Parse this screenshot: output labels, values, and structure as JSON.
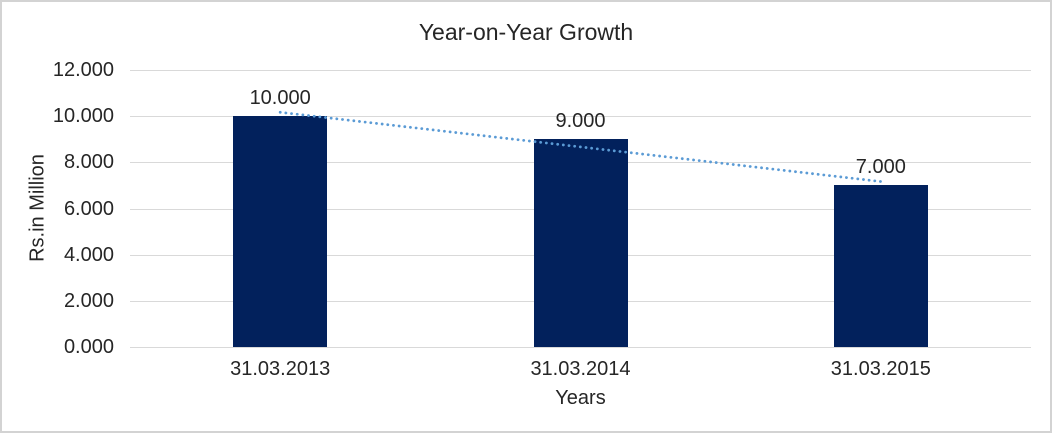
{
  "chart_data": {
    "type": "bar",
    "title": "Year-on-Year Growth",
    "xlabel": "Years",
    "ylabel": "Rs.in Million",
    "categories": [
      "31.03.2013",
      "31.03.2014",
      "31.03.2015"
    ],
    "values": [
      10000,
      9000,
      7000
    ],
    "value_labels": [
      "10.000",
      "9.000",
      "7.000"
    ],
    "ytick_labels": [
      "12.000",
      "10.000",
      "8.000",
      "6.000",
      "4.000",
      "2.000",
      "0.000"
    ],
    "ylim": [
      0,
      12000
    ],
    "ytick_step": 2000,
    "grid": true,
    "legend": false,
    "number_format": "thousands separated by dot",
    "trendline": {
      "type": "linear",
      "style": "dotted",
      "color": "#5B9BD5",
      "endpoint_values": [
        10167,
        7167
      ]
    },
    "colors": {
      "bar": "#02215C",
      "gridline": "#D9D9D9",
      "text": "#262626",
      "border": "#D3D3D3",
      "background": "#FFFFFF"
    }
  }
}
